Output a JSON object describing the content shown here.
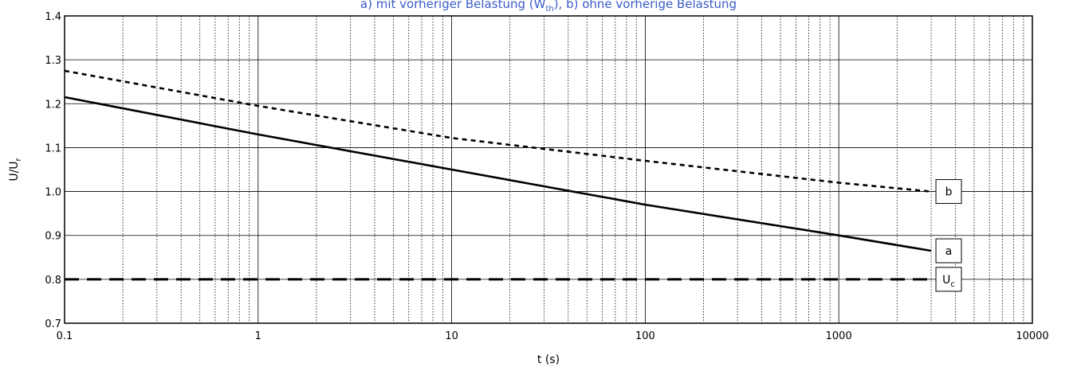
{
  "chart_data": {
    "type": "line",
    "title_parts": {
      "pre": "a) mit vorheriger Belastung (W",
      "sub": "th",
      "post": "), b) ohne vorherige Belastung"
    },
    "xlabel": "t (s)",
    "ylabel": {
      "main": "U/U",
      "sub": "r"
    },
    "x_scale": "log",
    "xlim": [
      0.1,
      10000
    ],
    "ylim": [
      0.7,
      1.4
    ],
    "x_ticks": [
      0.1,
      1,
      10,
      100,
      1000,
      10000
    ],
    "x_tick_labels": [
      "0.1",
      "1",
      "10",
      "100",
      "1000",
      "10000"
    ],
    "y_ticks": [
      0.7,
      0.8,
      0.9,
      1.0,
      1.1,
      1.2,
      1.3,
      1.4
    ],
    "y_tick_labels": [
      "0.7",
      "0.8",
      "0.9",
      "1.0",
      "1.1",
      "1.2",
      "1.3",
      "1.4"
    ],
    "grid": true,
    "series": [
      {
        "key": "a",
        "label": "a",
        "style": "solid",
        "color": "#000000",
        "x": [
          0.1,
          1,
          10,
          100,
          1000,
          3000
        ],
        "y": [
          1.215,
          1.13,
          1.05,
          0.97,
          0.9,
          0.865
        ]
      },
      {
        "key": "b",
        "label": "b",
        "style": "dashed",
        "color": "#000000",
        "x": [
          0.1,
          1,
          10,
          100,
          1000,
          3000
        ],
        "y": [
          1.275,
          1.195,
          1.122,
          1.07,
          1.02,
          1.0
        ]
      },
      {
        "key": "uc",
        "label": "U",
        "label_sub": "c",
        "style": "longdash",
        "color": "#000000",
        "x": [
          0.1,
          3000
        ],
        "y": [
          0.8,
          0.8
        ]
      }
    ]
  }
}
